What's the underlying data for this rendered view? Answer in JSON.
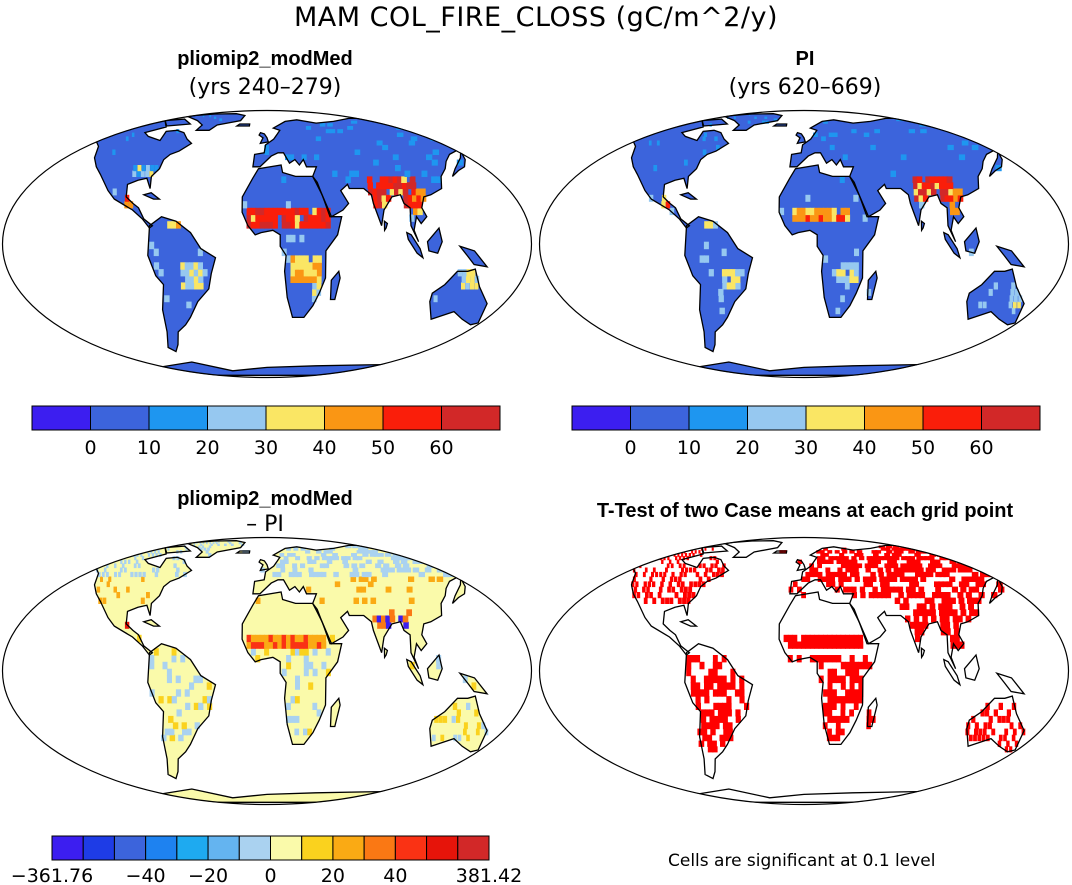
{
  "title": "MAM COL_FIRE_CLOSS (gC/m^2/y)",
  "panels": [
    {
      "id": "p1",
      "title": "pliomip2_modMed",
      "subtitle": "(yrs 240–279)",
      "palette": "abs"
    },
    {
      "id": "p2",
      "title": "PI",
      "subtitle": "(yrs 620–669)",
      "palette": "abs"
    },
    {
      "id": "p3",
      "title": "pliomip2_modMed",
      "subtitle": "– PI",
      "palette": "diff"
    },
    {
      "id": "p4",
      "title": "T-Test of two Case means at each grid point",
      "subtitle": "",
      "palette": "sig"
    }
  ],
  "colorbars": {
    "abs": {
      "colors": [
        "#3c1ef0",
        "#3c64dc",
        "#1e96f0",
        "#96c8f0",
        "#fae664",
        "#fa9614",
        "#fa1e0a",
        "#d22828"
      ],
      "labels": [
        "0",
        "10",
        "20",
        "30",
        "40",
        "50",
        "60"
      ]
    },
    "diff": {
      "colors": [
        "#3c1ef0",
        "#1e3ce6",
        "#3c64dc",
        "#1e82f0",
        "#1eaaf0",
        "#64b4f0",
        "#aad2f0",
        "#fafaaa",
        "#fad21e",
        "#faaa14",
        "#fa7814",
        "#fa3214",
        "#e6140a",
        "#d22828"
      ],
      "labels": [
        "−361.76",
        "−40",
        "−20",
        "0",
        "20",
        "40",
        "381.42"
      ]
    }
  },
  "note": "Cells are significant at 0.1 level",
  "colors": {
    "land_abs": "#3c64dc",
    "land_diff": "#fafaaa",
    "sig": "#ff0000",
    "outline": "#000000"
  }
}
